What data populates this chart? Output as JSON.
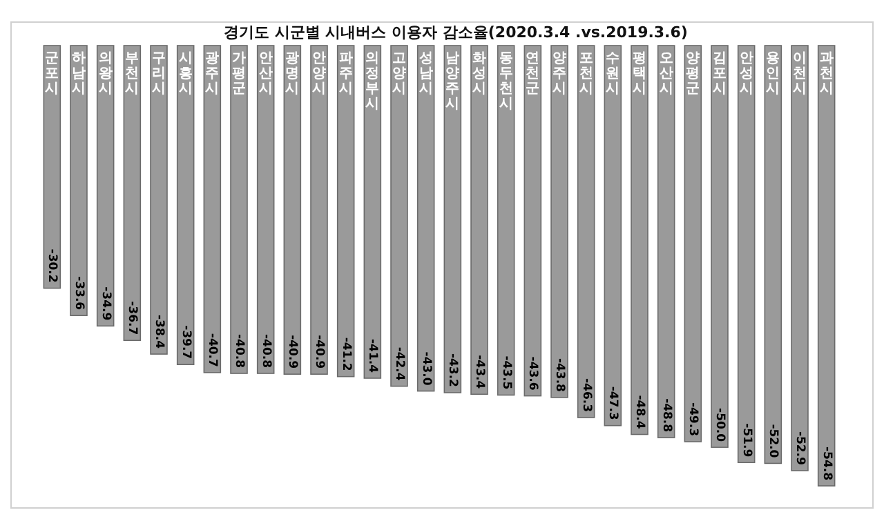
{
  "chart_data": {
    "type": "bar",
    "title": "경기도 시군별 시내버스 이용자 감소율(2020.3.4 .vs.2019.3.6)",
    "categories": [
      "군포시",
      "하남시",
      "의왕시",
      "부천시",
      "구리시",
      "시흥시",
      "광주시",
      "가평군",
      "안산시",
      "광명시",
      "안양시",
      "파주시",
      "의정부시",
      "고양시",
      "성남시",
      "남양주시",
      "화성시",
      "동두천시",
      "연천군",
      "양주시",
      "포천시",
      "수원시",
      "평택시",
      "오산시",
      "양평군",
      "김포시",
      "안성시",
      "용인시",
      "이천시",
      "과천시"
    ],
    "values": [
      -30.2,
      -33.6,
      -34.9,
      -36.7,
      -38.4,
      -39.7,
      -40.7,
      -40.8,
      -40.8,
      -40.9,
      -40.9,
      -41.2,
      -41.4,
      -42.4,
      -43.0,
      -43.2,
      -43.4,
      -43.5,
      -43.6,
      -43.8,
      -46.3,
      -47.3,
      -48.4,
      -48.8,
      -49.3,
      -50.0,
      -51.9,
      -52.0,
      -52.9,
      -54.8
    ],
    "value_labels": [
      "-30.2",
      "-33.6",
      "-34.9",
      "-36.7",
      "-38.4",
      "-39.7",
      "-40.7",
      "-40.8",
      "-40.8",
      "-40.9",
      "-40.9",
      "-41.2",
      "-41.4",
      "-42.4",
      "-43.0",
      "-43.2",
      "-43.4",
      "-43.5",
      "-43.6",
      "-43.8",
      "-46.3",
      "-47.3",
      "-48.4",
      "-48.8",
      "-49.3",
      "-50.0",
      "-51.9",
      "-52.0",
      "-52.9",
      "-54.8"
    ],
    "color": "#9a9a9a"
  }
}
